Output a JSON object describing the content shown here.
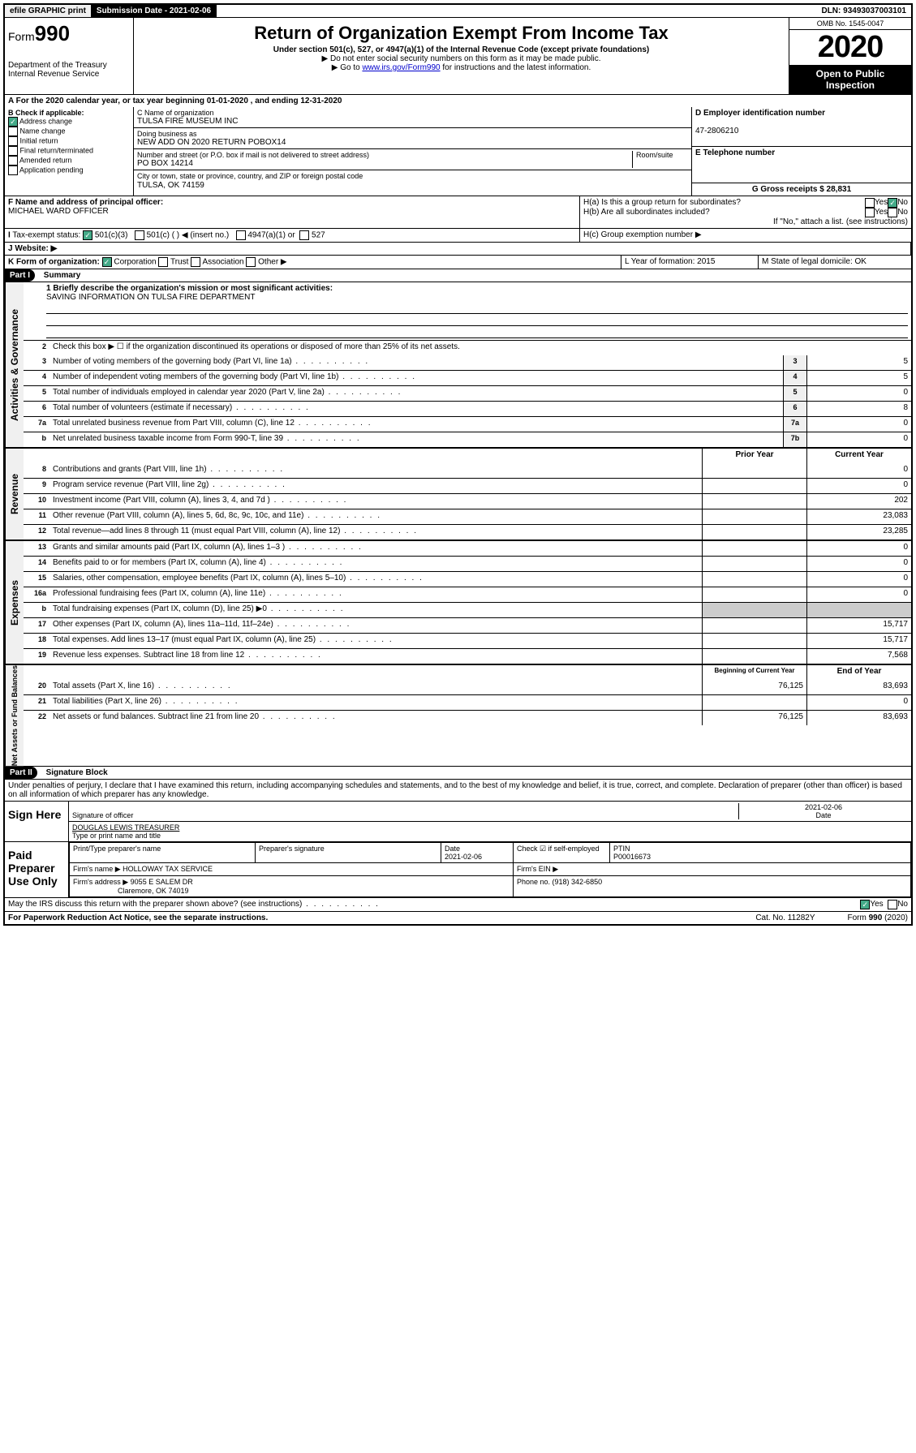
{
  "topbar": {
    "efile": "efile GRAPHIC print",
    "submission_label": "Submission Date - 2021-02-06",
    "dln": "DLN: 93493037003101"
  },
  "header": {
    "form_prefix": "Form",
    "form_number": "990",
    "dept": "Department of the Treasury\nInternal Revenue Service",
    "title": "Return of Organization Exempt From Income Tax",
    "subtitle": "Under section 501(c), 527, or 4947(a)(1) of the Internal Revenue Code (except private foundations)",
    "note1": "▶ Do not enter social security numbers on this form as it may be made public.",
    "note2_pre": "▶ Go to ",
    "note2_link": "www.irs.gov/Form990",
    "note2_post": " for instructions and the latest information.",
    "omb": "OMB No. 1545-0047",
    "year": "2020",
    "open": "Open to Public Inspection"
  },
  "period": {
    "text": "For the 2020 calendar year, or tax year beginning 01-01-2020   , and ending 12-31-2020"
  },
  "blockB": {
    "label": "B Check if applicable:",
    "opts": [
      "Address change",
      "Name change",
      "Initial return",
      "Final return/terminated",
      "Amended return",
      "Application pending"
    ],
    "checked": [
      true,
      false,
      false,
      false,
      false,
      false
    ]
  },
  "blockC": {
    "name_label": "C Name of organization",
    "name": "TULSA FIRE MUSEUM INC",
    "dba_label": "Doing business as",
    "dba": "NEW ADD ON 2020 RETURN POBOX14",
    "addr_label": "Number and street (or P.O. box if mail is not delivered to street address)",
    "room_label": "Room/suite",
    "addr": "PO BOX 14214",
    "city_label": "City or town, state or province, country, and ZIP or foreign postal code",
    "city": "TULSA, OK  74159"
  },
  "blockDEG": {
    "d_label": "D Employer identification number",
    "d_val": "47-2806210",
    "e_label": "E Telephone number",
    "g_label": "G Gross receipts $ 28,831"
  },
  "blockF": {
    "label": "F  Name and address of principal officer:",
    "val": "MICHAEL WARD OFFICER"
  },
  "blockH": {
    "a": "H(a)  Is this a group return for subordinates?",
    "b": "H(b)  Are all subordinates included?",
    "b_note": "If \"No,\" attach a list. (see instructions)",
    "c": "H(c)  Group exemption number ▶",
    "yes": "Yes",
    "no": "No"
  },
  "taxexempt": {
    "i": "I",
    "label": "Tax-exempt status:",
    "o1": "501(c)(3)",
    "o2": "501(c) (  ) ◀ (insert no.)",
    "o3": "4947(a)(1) or",
    "o4": "527"
  },
  "website": {
    "j": "J",
    "label": "Website: ▶"
  },
  "korg": {
    "k": "K Form of organization:",
    "opts": [
      "Corporation",
      "Trust",
      "Association",
      "Other ▶"
    ],
    "l": "L Year of formation: 2015",
    "m": "M State of legal domicile: OK"
  },
  "part1": {
    "tag": "Part I",
    "title": "Summary",
    "l1_label": "1  Briefly describe the organization's mission or most significant activities:",
    "l1_val": "SAVING INFORMATION ON TULSA FIRE DEPARTMENT",
    "l2": "Check this box ▶ ☐  if the organization discontinued its operations or disposed of more than 25% of its net assets.",
    "rows_top": [
      {
        "n": "3",
        "t": "Number of voting members of the governing body (Part VI, line 1a)",
        "b": "3",
        "v": "5"
      },
      {
        "n": "4",
        "t": "Number of independent voting members of the governing body (Part VI, line 1b)",
        "b": "4",
        "v": "5"
      },
      {
        "n": "5",
        "t": "Total number of individuals employed in calendar year 2020 (Part V, line 2a)",
        "b": "5",
        "v": "0"
      },
      {
        "n": "6",
        "t": "Total number of volunteers (estimate if necessary)",
        "b": "6",
        "v": "8"
      },
      {
        "n": "7a",
        "t": "Total unrelated business revenue from Part VIII, column (C), line 12",
        "b": "7a",
        "v": "0"
      },
      {
        "n": "b",
        "t": "Net unrelated business taxable income from Form 990-T, line 39",
        "b": "7b",
        "v": "0"
      }
    ],
    "col_prior": "Prior Year",
    "col_current": "Current Year",
    "revenue": [
      {
        "n": "8",
        "t": "Contributions and grants (Part VIII, line 1h)",
        "p": "",
        "c": "0"
      },
      {
        "n": "9",
        "t": "Program service revenue (Part VIII, line 2g)",
        "p": "",
        "c": "0"
      },
      {
        "n": "10",
        "t": "Investment income (Part VIII, column (A), lines 3, 4, and 7d )",
        "p": "",
        "c": "202"
      },
      {
        "n": "11",
        "t": "Other revenue (Part VIII, column (A), lines 5, 6d, 8c, 9c, 10c, and 11e)",
        "p": "",
        "c": "23,083"
      },
      {
        "n": "12",
        "t": "Total revenue—add lines 8 through 11 (must equal Part VIII, column (A), line 12)",
        "p": "",
        "c": "23,285"
      }
    ],
    "expenses": [
      {
        "n": "13",
        "t": "Grants and similar amounts paid (Part IX, column (A), lines 1–3 )",
        "p": "",
        "c": "0"
      },
      {
        "n": "14",
        "t": "Benefits paid to or for members (Part IX, column (A), line 4)",
        "p": "",
        "c": "0"
      },
      {
        "n": "15",
        "t": "Salaries, other compensation, employee benefits (Part IX, column (A), lines 5–10)",
        "p": "",
        "c": "0"
      },
      {
        "n": "16a",
        "t": "Professional fundraising fees (Part IX, column (A), line 11e)",
        "p": "",
        "c": "0"
      },
      {
        "n": "b",
        "t": "Total fundraising expenses (Part IX, column (D), line 25) ▶0",
        "p": "SHADE",
        "c": "SHADE"
      },
      {
        "n": "17",
        "t": "Other expenses (Part IX, column (A), lines 11a–11d, 11f–24e)",
        "p": "",
        "c": "15,717"
      },
      {
        "n": "18",
        "t": "Total expenses. Add lines 13–17 (must equal Part IX, column (A), line 25)",
        "p": "",
        "c": "15,717"
      },
      {
        "n": "19",
        "t": "Revenue less expenses. Subtract line 18 from line 12",
        "p": "",
        "c": "7,568"
      }
    ],
    "col_begin": "Beginning of Current Year",
    "col_end": "End of Year",
    "netassets": [
      {
        "n": "20",
        "t": "Total assets (Part X, line 16)",
        "p": "76,125",
        "c": "83,693"
      },
      {
        "n": "21",
        "t": "Total liabilities (Part X, line 26)",
        "p": "",
        "c": "0"
      },
      {
        "n": "22",
        "t": "Net assets or fund balances. Subtract line 21 from line 20",
        "p": "76,125",
        "c": "83,693"
      }
    ],
    "vlabels": [
      "Activities & Governance",
      "Revenue",
      "Expenses",
      "Net Assets or Fund Balances"
    ]
  },
  "part2": {
    "tag": "Part II",
    "title": "Signature Block",
    "decl": "Under penalties of perjury, I declare that I have examined this return, including accompanying schedules and statements, and to the best of my knowledge and belief, it is true, correct, and complete. Declaration of preparer (other than officer) is based on all information of which preparer has any knowledge.",
    "sign_here": "Sign Here",
    "sig_officer": "Signature of officer",
    "sig_date": "2021-02-06",
    "date_label": "Date",
    "name_title": "DOUGLAS LEWIS  TREASURER",
    "name_label": "Type or print name and title",
    "paid": "Paid Preparer Use Only",
    "h_print": "Print/Type preparer's name",
    "h_sig": "Preparer's signature",
    "h_date": "Date",
    "h_date_val": "2021-02-06",
    "h_check": "Check ☑ if self-employed",
    "h_ptin": "PTIN",
    "ptin_val": "P00016673",
    "firm_name_l": "Firm's name    ▶",
    "firm_name": "HOLLOWAY TAX SERVICE",
    "firm_ein_l": "Firm's EIN ▶",
    "firm_addr_l": "Firm's address ▶",
    "firm_addr1": "9055 E SALEM DR",
    "firm_addr2": "Claremore, OK  74019",
    "phone_l": "Phone no. (918) 342-6850",
    "discuss": "May the IRS discuss this return with the preparer shown above? (see instructions)",
    "yes": "Yes",
    "no": "No"
  },
  "footer": {
    "l": "For Paperwork Reduction Act Notice, see the separate instructions.",
    "c": "Cat. No. 11282Y",
    "r": "Form 990 (2020)"
  }
}
